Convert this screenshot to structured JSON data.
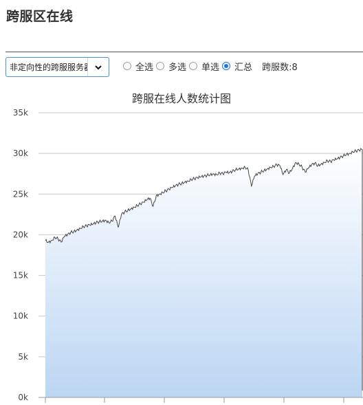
{
  "page": {
    "title": "跨服区在线"
  },
  "filter": {
    "select_value": "非定向性的跨服服务器",
    "select_icon": "chevron-down-icon"
  },
  "radios": [
    {
      "label": "全选",
      "checked": false
    },
    {
      "label": "多选",
      "checked": false
    },
    {
      "label": "单选",
      "checked": false
    },
    {
      "label": "汇总",
      "checked": true
    }
  ],
  "server_count": "跨服数:8",
  "colors": {
    "accent": "#1a73e8",
    "area_top": "#ffffff",
    "area_bottom": "#bcd6f3",
    "line": "#444444",
    "grid": "#c8c8c8"
  },
  "chart_data": {
    "type": "area",
    "title": "跨服在线人数统计图",
    "xlabel": "",
    "ylabel": "",
    "ylim": [
      0,
      35000
    ],
    "yticks": [
      0,
      5000,
      10000,
      15000,
      20000,
      25000,
      30000,
      35000
    ],
    "ytick_labels": [
      "0k",
      "5k",
      "10k",
      "15k",
      "20k",
      "25k",
      "30k",
      "35k"
    ],
    "grid": true,
    "legend": "none",
    "series": [
      {
        "x": [
          0,
          1,
          2,
          3,
          4,
          5,
          6,
          7,
          8,
          9,
          10,
          11,
          12,
          13,
          14,
          15,
          16,
          17,
          18,
          19,
          20,
          21,
          22,
          23,
          24,
          25,
          26,
          27,
          28,
          29,
          30,
          31,
          32,
          33,
          34,
          35,
          36,
          37,
          38,
          39,
          40,
          41,
          42,
          43,
          44,
          45,
          46,
          47,
          48,
          49,
          50,
          51,
          52,
          53,
          54,
          55,
          56,
          57,
          58,
          59,
          60,
          61,
          62,
          63,
          64,
          65,
          66,
          67,
          68,
          69,
          70,
          71,
          72,
          73,
          74,
          75,
          76,
          77,
          78,
          79,
          80,
          81,
          82,
          83,
          84,
          85,
          86,
          87,
          88,
          89,
          90,
          91,
          92,
          93,
          94,
          95,
          96,
          97,
          98,
          99,
          100
        ],
        "values": [
          19300,
          19100,
          19300,
          19700,
          19500,
          19100,
          19800,
          20000,
          20300,
          20400,
          20600,
          20800,
          21000,
          21100,
          21200,
          21300,
          21500,
          21600,
          21700,
          21800,
          21500,
          21700,
          22300,
          20900,
          22500,
          22800,
          23000,
          23200,
          23400,
          23600,
          23800,
          24000,
          24300,
          24500,
          23500,
          24800,
          25000,
          25200,
          25400,
          25600,
          25800,
          26000,
          26200,
          26300,
          26500,
          26600,
          26800,
          26900,
          27000,
          27100,
          27200,
          27300,
          27400,
          27500,
          27400,
          27600,
          27500,
          27700,
          27600,
          27800,
          28000,
          28100,
          28200,
          28300,
          28000,
          26000,
          27200,
          27500,
          27700,
          27900,
          28100,
          28300,
          28400,
          28600,
          28500,
          27400,
          28000,
          27600,
          28200,
          28900,
          28700,
          28300,
          27700,
          28200,
          28600,
          28800,
          28500,
          28700,
          28900,
          29100,
          29000,
          29200,
          29300,
          29500,
          29700,
          29900,
          30000,
          30200,
          30300,
          30400,
          30500
        ]
      }
    ]
  }
}
